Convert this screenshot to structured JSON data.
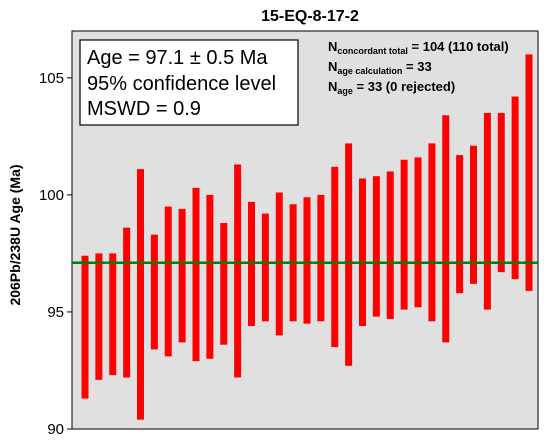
{
  "chart_data": {
    "type": "bar",
    "title": "15-EQ-8-17-2",
    "ylabel": "206Pb/238U Age (Ma)",
    "xlabel": "",
    "ylim": [
      90,
      107
    ],
    "yticks": [
      90,
      95,
      100,
      105
    ],
    "grid": false,
    "plot_background": "#e0e0e0",
    "bar_color": "#ff0000",
    "mean_line": {
      "value": 97.1,
      "color": "#008000"
    },
    "stat_box": {
      "line1": "Age = 97.1 ± 0.5 Ma",
      "line2": "95% confidence level",
      "line3": "MSWD = 0.9"
    },
    "counts": [
      {
        "main": "N",
        "sub": "concordant total",
        "value": " = 104 (110 total)"
      },
      {
        "main": "N",
        "sub": "age calculation",
        "value": " = 33"
      },
      {
        "main": "N",
        "sub": "age",
        "value": " = 33 (0 rejected)"
      }
    ],
    "error_bars": [
      {
        "low": 91.3,
        "high": 97.4
      },
      {
        "low": 92.1,
        "high": 97.5
      },
      {
        "low": 92.3,
        "high": 97.5
      },
      {
        "low": 92.2,
        "high": 98.6
      },
      {
        "low": 90.4,
        "high": 101.1
      },
      {
        "low": 93.4,
        "high": 98.3
      },
      {
        "low": 93.1,
        "high": 99.5
      },
      {
        "low": 93.7,
        "high": 99.4
      },
      {
        "low": 92.9,
        "high": 100.3
      },
      {
        "low": 93.0,
        "high": 100.0
      },
      {
        "low": 93.6,
        "high": 98.8
      },
      {
        "low": 92.2,
        "high": 101.3
      },
      {
        "low": 94.4,
        "high": 99.7
      },
      {
        "low": 94.6,
        "high": 99.2
      },
      {
        "low": 94.0,
        "high": 100.1
      },
      {
        "low": 94.6,
        "high": 99.6
      },
      {
        "low": 94.5,
        "high": 99.9
      },
      {
        "low": 94.6,
        "high": 100.0
      },
      {
        "low": 93.5,
        "high": 101.2
      },
      {
        "low": 92.7,
        "high": 102.2
      },
      {
        "low": 94.4,
        "high": 100.7
      },
      {
        "low": 94.8,
        "high": 100.8
      },
      {
        "low": 94.7,
        "high": 101.0
      },
      {
        "low": 95.1,
        "high": 101.5
      },
      {
        "low": 95.2,
        "high": 101.6
      },
      {
        "low": 94.6,
        "high": 102.2
      },
      {
        "low": 93.7,
        "high": 103.4
      },
      {
        "low": 95.8,
        "high": 101.7
      },
      {
        "low": 96.2,
        "high": 102.1
      },
      {
        "low": 95.1,
        "high": 103.5
      },
      {
        "low": 96.7,
        "high": 103.5
      },
      {
        "low": 96.4,
        "high": 104.2
      },
      {
        "low": 95.9,
        "high": 106.0
      }
    ]
  }
}
